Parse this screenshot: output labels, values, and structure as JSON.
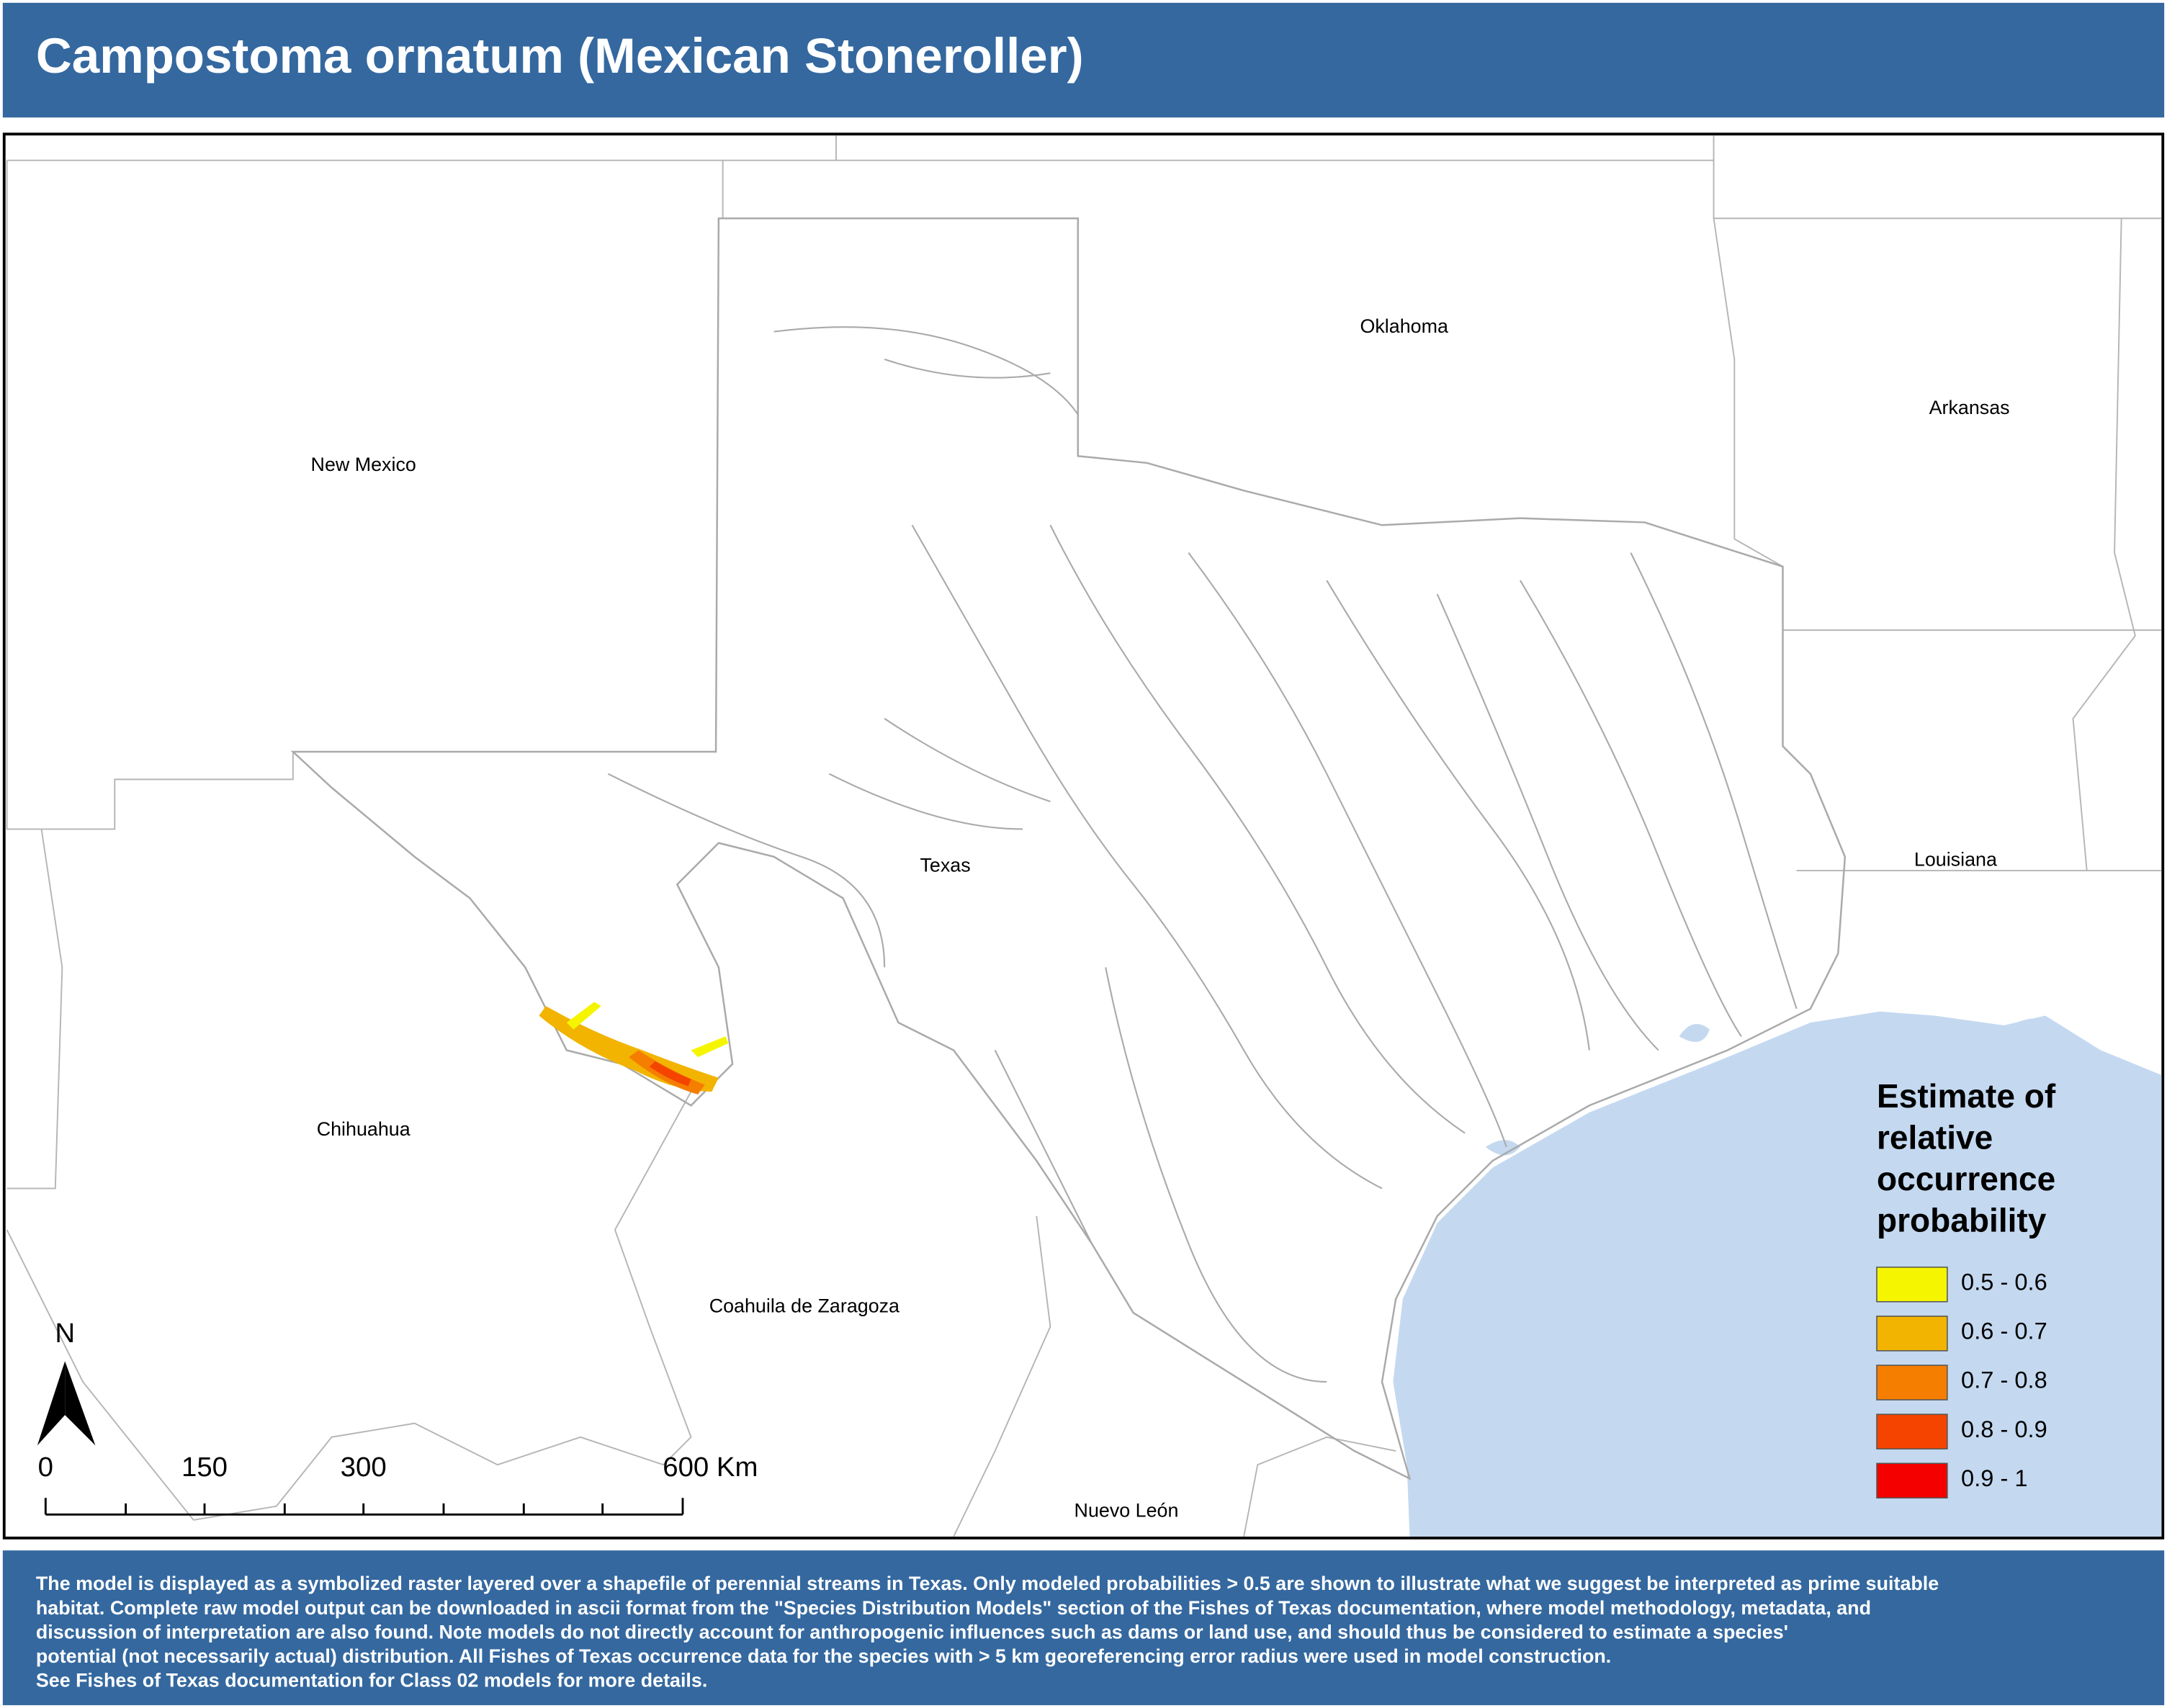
{
  "header": {
    "title": "Campostoma ornatum (Mexican Stoneroller)"
  },
  "map": {
    "place_labels": [
      {
        "text": "New Mexico"
      },
      {
        "text": "Oklahoma"
      },
      {
        "text": "Arkansas"
      },
      {
        "text": "Texas"
      },
      {
        "text": "Louisiana"
      },
      {
        "text": "Chihuahua"
      },
      {
        "text": "Coahuila de Zaragoza"
      },
      {
        "text": "Nuevo León"
      }
    ],
    "north_label": "N",
    "scale_labels": [
      "0",
      "150",
      "300",
      "600 Km"
    ],
    "legend": {
      "title_lines": [
        "Estimate of",
        "relative",
        "occurrence",
        "probability"
      ],
      "items": [
        {
          "label": "0.5 - 0.6",
          "color": "#f5f500"
        },
        {
          "label": "0.6 - 0.7",
          "color": "#f2b400"
        },
        {
          "label": "0.7 - 0.8",
          "color": "#f57d00"
        },
        {
          "label": "0.8 - 0.9",
          "color": "#f54300"
        },
        {
          "label": "0.9 - 1",
          "color": "#f50000"
        }
      ]
    }
  },
  "footer": {
    "lines": [
      "The model is displayed as a symbolized raster layered over a shapefile of perennial streams in Texas. Only modeled probabilities > 0.5 are shown to illustrate what we suggest be interpreted as prime suitable",
      "habitat. Complete raw model output can be downloaded in ascii format from the \"Species Distribution Models\" section of the Fishes of Texas documentation, where model methodology, metadata, and",
      " discussion of interpretation are also found. Note models do not directly account for anthropogenic influences such as dams or land use, and should thus be considered to estimate a species'",
      "potential (not necessarily actual) distribution. All Fishes of Texas occurrence data for the species with > 5 km georeferencing error radius were used in model construction.",
      "See Fishes of Texas documentation for Class 02 models for more details."
    ]
  }
}
